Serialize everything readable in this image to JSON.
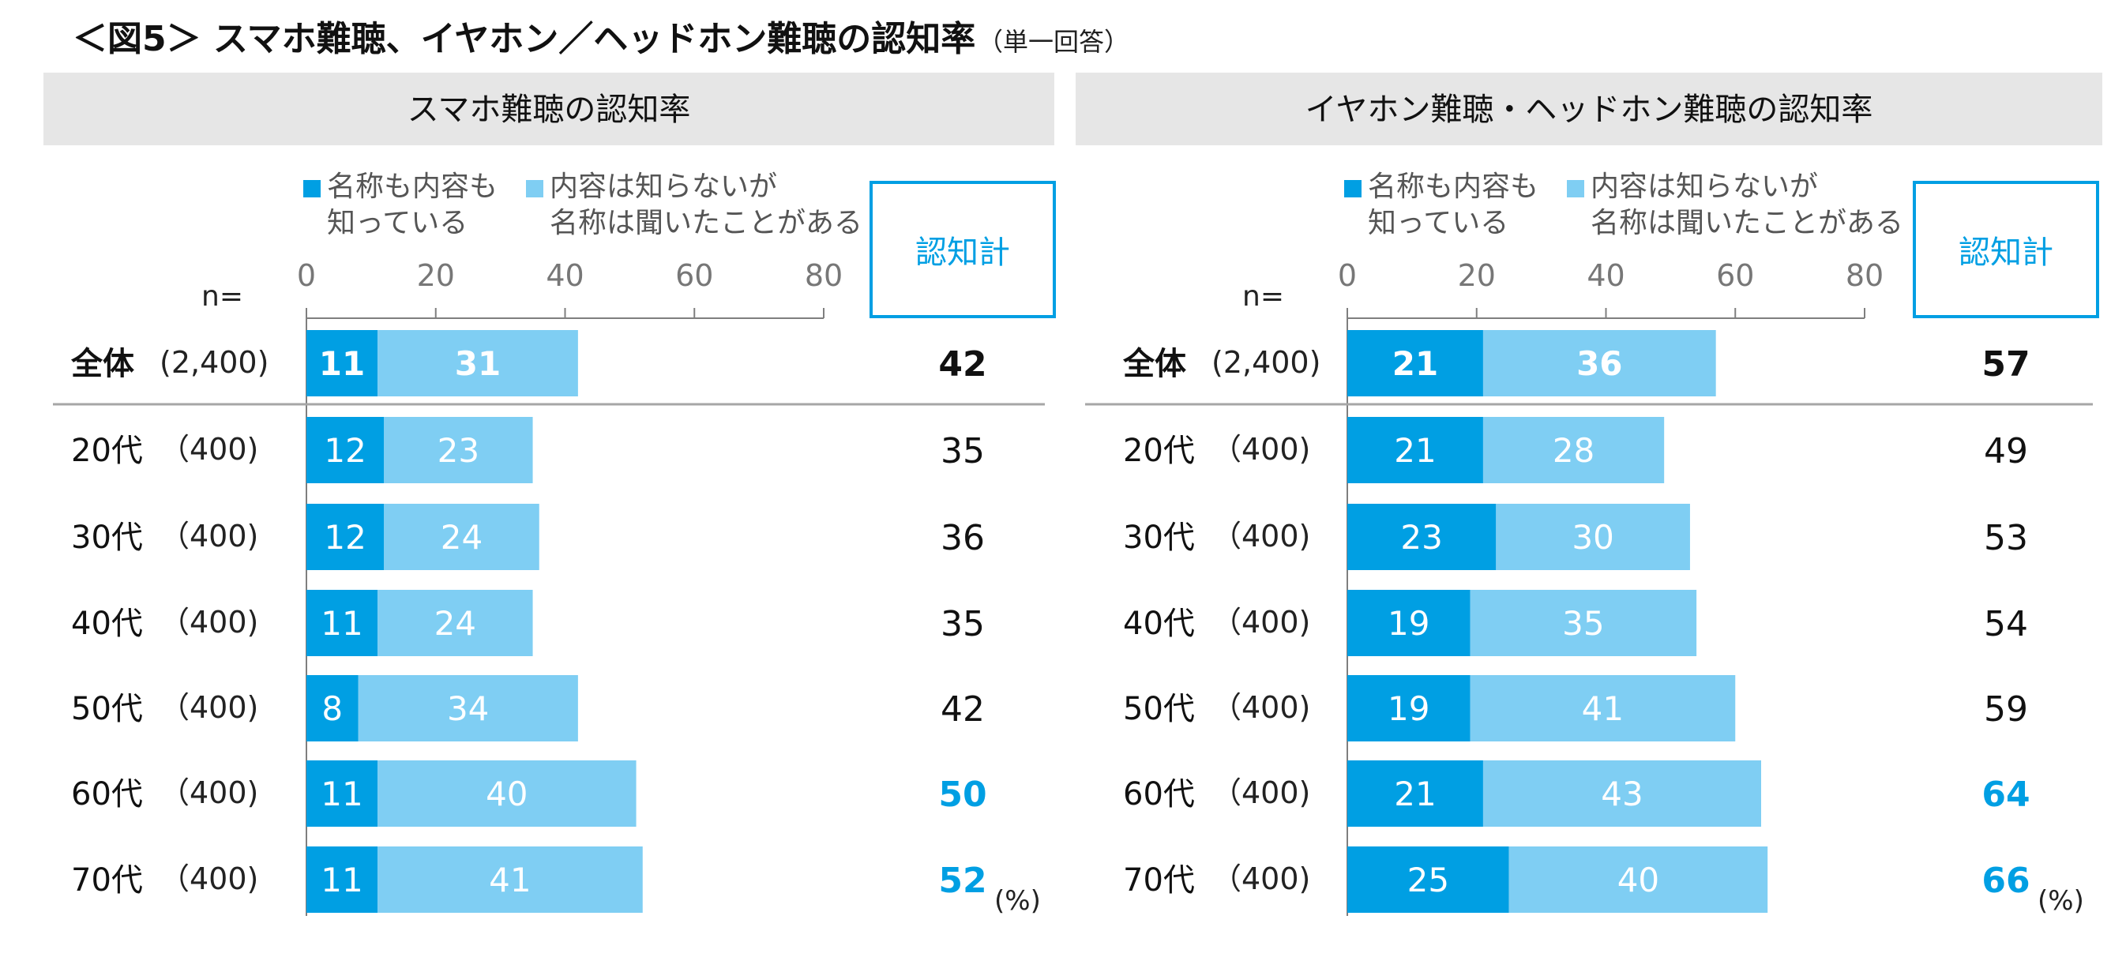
{
  "figure": {
    "title": "＜図5＞ スマホ難聴、イヤホン／ヘッドホン難聴の認知率",
    "subtitle": "（単一回答）"
  },
  "colors": {
    "dark": "#009fe3",
    "light": "#7fcef3",
    "header_bg": "#e6e6e6",
    "accent_text": "#009fe3",
    "box_border": "#009fe3",
    "axis": "#7f7f7f"
  },
  "chart_data": [
    {
      "type": "bar",
      "orientation": "horizontal",
      "stacked": true,
      "title": "スマホ難聴の認知率",
      "n_label": "n=",
      "total_label": "認知計",
      "unit": "(%)",
      "xlim": [
        0,
        80
      ],
      "xticks": [
        0,
        20,
        40,
        60,
        80
      ],
      "categories": [
        "全体",
        "20代",
        "30代",
        "40代",
        "50代",
        "60代",
        "70代"
      ],
      "n": [
        "(2,400)",
        "（400)",
        "（400)",
        "（400)",
        "（400)",
        "（400)",
        "（400)"
      ],
      "series": [
        {
          "name": "名称も内容も知っている",
          "legend_lines": [
            "名称も内容も",
            "知っている"
          ],
          "values": [
            11,
            12,
            12,
            11,
            8,
            11,
            11
          ]
        },
        {
          "name": "内容は知らないが名称は聞いたことがある",
          "legend_lines": [
            "内容は知らないが",
            "名称は聞いたことがある"
          ],
          "values": [
            31,
            23,
            24,
            24,
            34,
            40,
            41
          ]
        }
      ],
      "bar_labels": [
        [
          "11",
          "12",
          "12",
          "11",
          "8",
          "11",
          "11"
        ],
        [
          "31",
          "23",
          "24",
          "24",
          "34",
          "40",
          "41"
        ]
      ],
      "bar_extents": [
        [
          11,
          12,
          12,
          11,
          8,
          11,
          11
        ],
        [
          31,
          23,
          24,
          24,
          34,
          40,
          41
        ]
      ],
      "totals": [
        "42",
        "35",
        "36",
        "35",
        "42",
        "50",
        "52"
      ],
      "highlight_totals": [
        false,
        false,
        false,
        false,
        false,
        true,
        true
      ]
    },
    {
      "type": "bar",
      "orientation": "horizontal",
      "stacked": true,
      "title": "イヤホン難聴・ヘッドホン難聴の認知率",
      "n_label": "n=",
      "total_label": "認知計",
      "unit": "(%)",
      "xlim": [
        0,
        80
      ],
      "xticks": [
        0,
        20,
        40,
        60,
        80
      ],
      "categories": [
        "全体",
        "20代",
        "30代",
        "40代",
        "50代",
        "60代",
        "70代"
      ],
      "n": [
        "(2,400)",
        "（400)",
        "（400)",
        "（400)",
        "（400)",
        "（400)",
        "（400)"
      ],
      "series": [
        {
          "name": "名称も内容も知っている",
          "legend_lines": [
            "名称も内容も",
            "知っている"
          ],
          "values": [
            21,
            21,
            23,
            19,
            19,
            21,
            25
          ]
        },
        {
          "name": "内容は知らないが名称は聞いたことがある",
          "legend_lines": [
            "内容は知らないが",
            "名称は聞いたことがある"
          ],
          "values": [
            36,
            28,
            30,
            35,
            41,
            43,
            40
          ]
        }
      ],
      "bar_labels": [
        [
          "21",
          "21",
          "23",
          "19",
          "19",
          "21",
          "25"
        ],
        [
          "36",
          "28",
          "30",
          "35",
          "41",
          "43",
          "40"
        ]
      ],
      "bar_extents": [
        [
          21,
          21,
          23,
          19,
          19,
          21,
          25
        ],
        [
          36,
          28,
          30,
          35,
          41,
          43,
          40
        ]
      ],
      "totals": [
        "57",
        "49",
        "53",
        "54",
        "59",
        "64",
        "66"
      ],
      "highlight_totals": [
        false,
        false,
        false,
        false,
        false,
        true,
        true
      ]
    }
  ]
}
